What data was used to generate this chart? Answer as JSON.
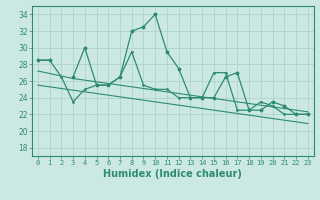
{
  "xlabel": "Humidex (Indice chaleur)",
  "x": [
    0,
    1,
    2,
    3,
    4,
    5,
    6,
    7,
    8,
    9,
    10,
    11,
    12,
    13,
    14,
    15,
    16,
    17,
    18,
    19,
    20,
    21,
    22,
    23
  ],
  "line_spiky": [
    28.5,
    28.5,
    26.5,
    23.5,
    25.0,
    25.5,
    25.5,
    26.5,
    29.5,
    25.5,
    25.0,
    25.0,
    24.0,
    24.0,
    24.0,
    27.0,
    27.0,
    22.5,
    22.5,
    23.5,
    23.0,
    22.0,
    22.0,
    22.0
  ],
  "line_upper": [
    28.5,
    28.5,
    null,
    26.5,
    30.0,
    25.5,
    25.5,
    26.5,
    32.0,
    32.5,
    34.0,
    29.5,
    27.5,
    24.0,
    24.0,
    24.0,
    26.5,
    27.0,
    22.5,
    22.5,
    23.5,
    23.0,
    22.0,
    22.0
  ],
  "line_trend_top": [
    27.2,
    26.9,
    26.6,
    26.3,
    26.1,
    25.9,
    25.7,
    25.5,
    25.3,
    25.1,
    24.9,
    24.7,
    24.5,
    24.3,
    24.1,
    23.9,
    23.7,
    23.5,
    23.3,
    23.1,
    22.9,
    22.7,
    22.5,
    22.3
  ],
  "line_trend_bot": [
    25.5,
    25.3,
    25.1,
    24.9,
    24.7,
    24.5,
    24.3,
    24.1,
    23.9,
    23.7,
    23.5,
    23.3,
    23.1,
    22.9,
    22.7,
    22.5,
    22.3,
    22.1,
    21.9,
    21.7,
    21.5,
    21.3,
    21.1,
    20.9
  ],
  "color_main": "#2d8b70",
  "bg_color": "#cce8e4",
  "grid_color": "#aacfca",
  "ylim": [
    17,
    35
  ],
  "yticks": [
    18,
    20,
    22,
    24,
    26,
    28,
    30,
    32,
    34
  ]
}
